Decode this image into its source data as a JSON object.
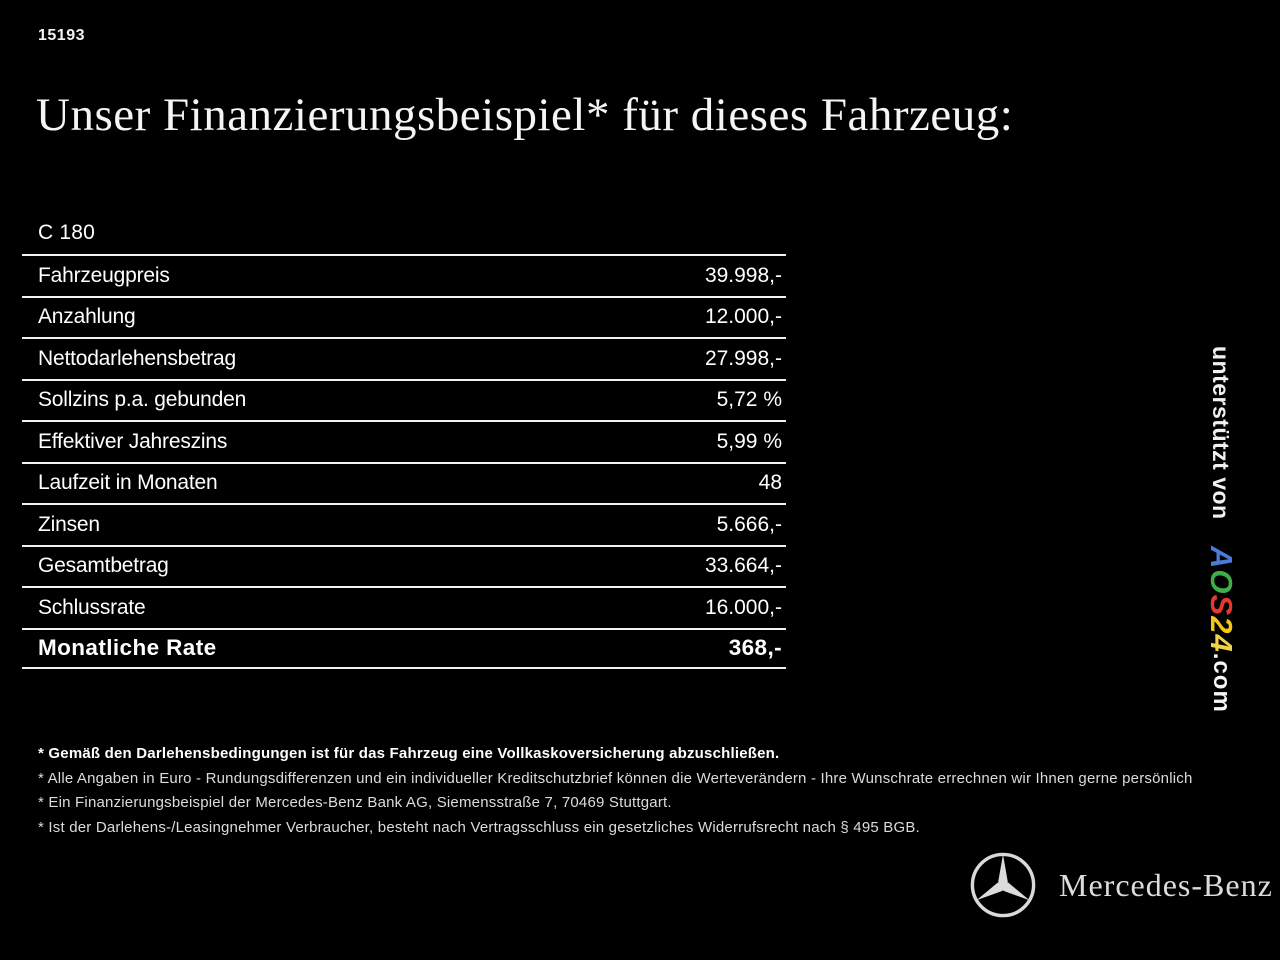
{
  "page": {
    "code": "15193",
    "title": "Unser Finanzierungsbeispiel* für dieses Fahrzeug:"
  },
  "table": {
    "model": "C 180",
    "rows": [
      {
        "label": "Fahrzeugpreis",
        "value": "39.998,-"
      },
      {
        "label": "Anzahlung",
        "value": "12.000,-"
      },
      {
        "label": "Nettodarlehensbetrag",
        "value": "27.998,-"
      },
      {
        "label": "Sollzins p.a. gebunden",
        "value": "5,72 %"
      },
      {
        "label": "Effektiver Jahreszins",
        "value": "5,99 %"
      },
      {
        "label": "Laufzeit in Monaten",
        "value": "48"
      },
      {
        "label": "Zinsen",
        "value": "5.666,-"
      },
      {
        "label": "Gesamtbetrag",
        "value": "33.664,-"
      },
      {
        "label": "Schlussrate",
        "value": "16.000,-"
      }
    ],
    "highlight_row": {
      "label": "Monatliche Rate",
      "value": "368,-"
    }
  },
  "footnotes": [
    {
      "text": "* Gemäß den Darlehensbedingungen ist für das Fahrzeug eine Vollkaskoversicherung abzuschließen.",
      "bold": true
    },
    {
      "text": "* Alle Angaben in Euro - Rundungsdifferenzen und ein individueller Kreditschutzbrief können die Werteverändern - Ihre Wunschrate errechnen wir Ihnen gerne persönlich",
      "bold": false
    },
    {
      "text": "* Ein Finanzierungsbeispiel der Mercedes-Benz Bank AG, Siemensstraße 7, 70469 Stuttgart.",
      "bold": false
    },
    {
      "text": "* Ist der Darlehens-/Leasingnehmer Verbraucher, besteht nach Vertragsschluss ein gesetzliches Widerrufsrecht nach § 495 BGB.",
      "bold": false
    }
  ],
  "side_credit": {
    "supported_by": "unterstützt von",
    "brand_letters": [
      {
        "char": "A",
        "color": "#4a7bd9"
      },
      {
        "char": "O",
        "color": "#3fae49"
      },
      {
        "char": "S",
        "color": "#e23b2e"
      },
      {
        "char": "2",
        "color": "#f2c718"
      },
      {
        "char": "4",
        "color": "#f0d34a"
      }
    ],
    "brand_suffix": ".com"
  },
  "branding": {
    "wordmark": "Mercedes-Benz"
  },
  "colors": {
    "background": "#000000",
    "text": "#ffffff",
    "footnote_text": "#dcdcdc",
    "rule": "#f2f2f2"
  }
}
